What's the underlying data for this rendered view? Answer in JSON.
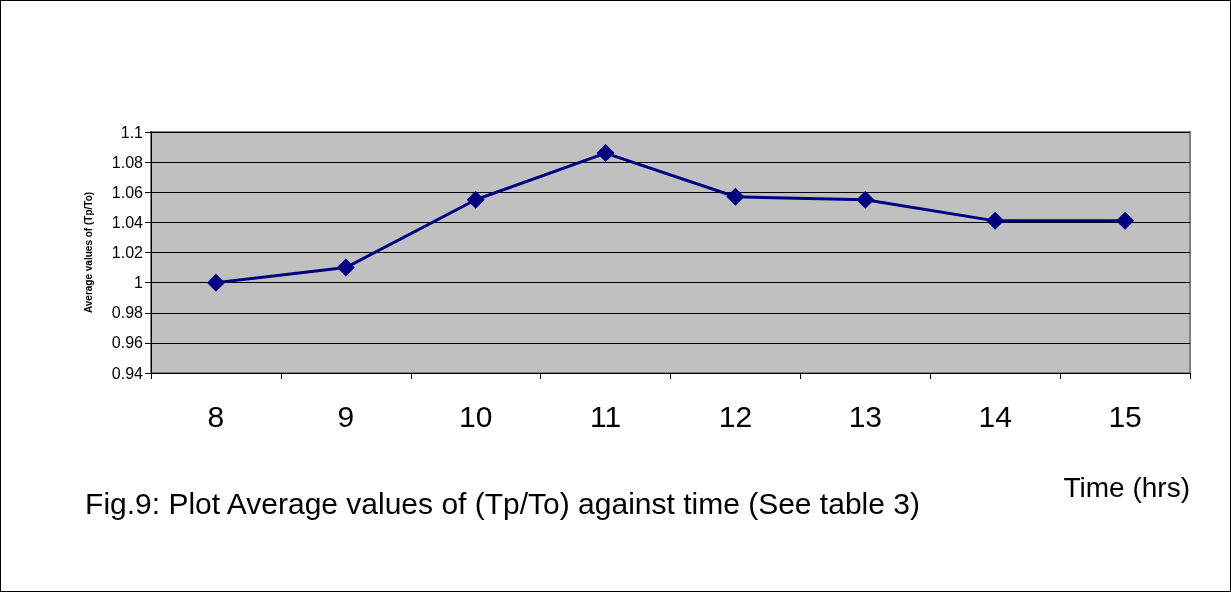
{
  "chart_data": {
    "type": "line",
    "title": "Fig.9: Plot Average values of (Tp/To) against time (See table 3)",
    "xlabel": "Time (hrs)",
    "ylabel": "Average values of (Tp/To)",
    "categories": [
      "8",
      "9",
      "10",
      "11",
      "12",
      "13",
      "14",
      "15"
    ],
    "series": [
      {
        "color": "#000080",
        "values": [
          1.0,
          1.01,
          1.055,
          1.086,
          1.057,
          1.055,
          1.041,
          1.041
        ]
      }
    ],
    "ylim": [
      0.94,
      1.1
    ],
    "yticks": [
      0.94,
      0.96,
      0.98,
      1,
      1.02,
      1.04,
      1.06,
      1.08,
      1.1
    ],
    "grid": "y",
    "marker": "diamond",
    "line_style": "solid"
  }
}
